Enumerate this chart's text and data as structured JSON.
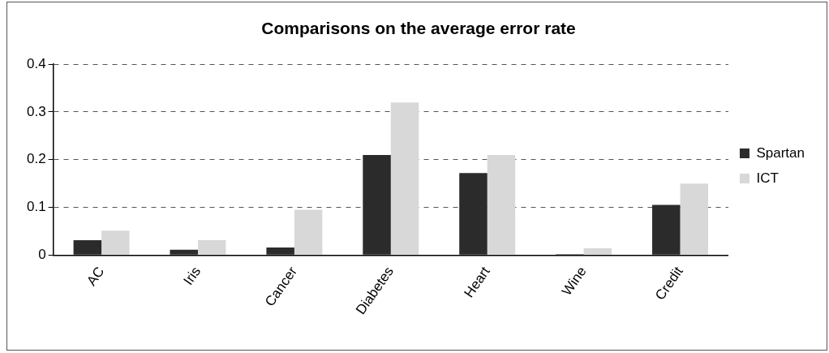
{
  "chart_data": {
    "type": "bar",
    "title": "Comparisons on the average error rate",
    "categories": [
      "AC",
      "Iris",
      "Cancer",
      "Diabetes",
      "Heart",
      "Wine",
      "Credit"
    ],
    "series": [
      {
        "name": "Spartan",
        "color": "#2b2b2b",
        "values": [
          0.031,
          0.011,
          0.016,
          0.21,
          0.172,
          0.002,
          0.105
        ]
      },
      {
        "name": "ICT",
        "color": "#d8d8d8",
        "values": [
          0.051,
          0.031,
          0.095,
          0.32,
          0.21,
          0.014,
          0.15
        ]
      }
    ],
    "ylim": [
      0,
      0.4
    ],
    "yticks": [
      0,
      0.1,
      0.2,
      0.3,
      0.4
    ],
    "grid": "y",
    "legend": "right"
  }
}
